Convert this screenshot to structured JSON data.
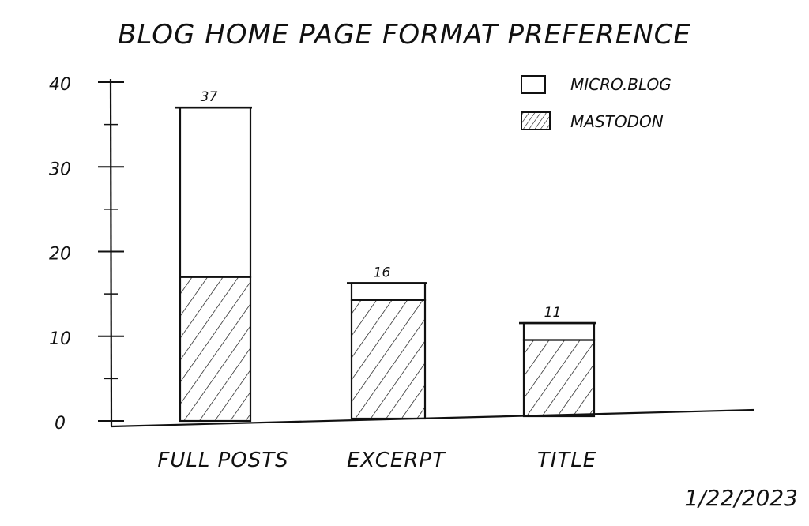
{
  "chart_data": {
    "type": "bar",
    "stacked": true,
    "title": "BLOG HOME PAGE FORMAT PREFERENCE",
    "categories": [
      "FULL POSTS",
      "EXCERPT",
      "TITLE"
    ],
    "totals": [
      37,
      16,
      11
    ],
    "series": [
      {
        "name": "MASTODON",
        "values": [
          17,
          14,
          9
        ],
        "fill": "hatched"
      },
      {
        "name": "MICRO.BLOG",
        "values": [
          20,
          2,
          2
        ],
        "fill": "white"
      }
    ],
    "ylim": [
      0,
      40
    ],
    "yticks": [
      0,
      10,
      20,
      30,
      40
    ],
    "xlabel": "",
    "ylabel": "",
    "legend_position": "top-right",
    "grid": false,
    "date_note": "1/22/2023"
  },
  "colors": {
    "ink": "#111111",
    "paper": "#ffffff"
  }
}
